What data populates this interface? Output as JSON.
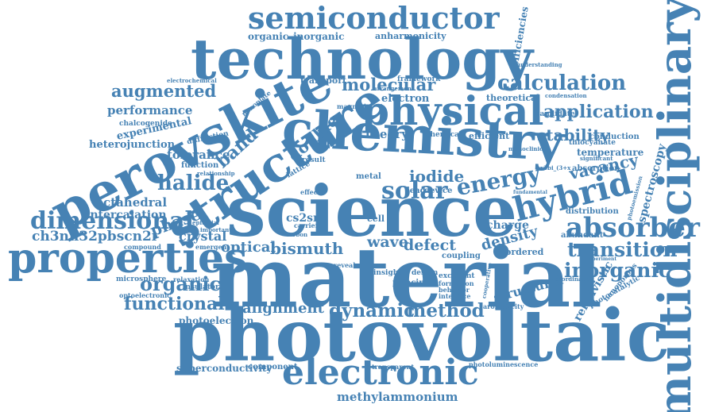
{
  "color": "#4682b4",
  "words": [
    "photovoltaic",
    "material",
    "science",
    "chemistry",
    "multidisciplinary",
    "technology",
    "perovskite",
    "structure",
    "physical",
    "properties",
    "semiconductor",
    "electronic",
    "absorber",
    "hybrid",
    "calculation",
    "application",
    "augmented",
    "energy",
    "solar",
    "dimensional",
    "transition",
    "halide",
    "inorganic",
    "organic",
    "functional",
    "optical",
    "bismuth",
    "dynamic",
    "method",
    "alignment",
    "wave",
    "defect",
    "density",
    "stability",
    "theory",
    "band",
    "double",
    "phase",
    "vacancy",
    "crystal",
    "spectroscopy",
    "molecular",
    "performance",
    "methylammonium",
    "relativistic",
    "iodide",
    "ch3nh32pbscn2i",
    "octahedral",
    "intercalation",
    "experimental",
    "heterojunction",
    "tolerance",
    "superconductivity",
    "photoelectron",
    "structural",
    "temperature",
    "charge",
    "organic–inorganic",
    "anharmonicity",
    "electron",
    "theoretical",
    "efficiencies",
    "transport",
    "framework",
    "chalcogenide",
    "thiocyanate",
    "absorption",
    "conduction",
    "cs2sni",
    "distribution",
    "abundant",
    "ordered",
    "coupling",
    "principle",
    "excellent",
    "formation",
    "behavior",
    "interface",
    "aromaticity",
    "photocatalytic",
    "nanoporous",
    "photoluminescence",
    "transparent",
    "component",
    "optoelectronic",
    "microsphere",
    "relaxation",
    "insulator",
    "compound",
    "emergent",
    "epitaxial",
    "important",
    "function",
    "relationship",
    "diffraction",
    "nanoplate",
    "electrochemical",
    "chemical",
    "efficient",
    "candidate",
    "condensation",
    "significant",
    "magnetic",
    "understanding",
    "arrangement",
    "insight",
    "design",
    "carrier",
    "carbon",
    "effect",
    "lattice",
    "metal",
    "lead",
    "device",
    "cell",
    "reveal",
    "result",
    "x3bi_(3+x",
    "coordination",
    "photoemission",
    "experiment",
    "cooperative",
    "fundamental",
    "monoclinic"
  ]
}
